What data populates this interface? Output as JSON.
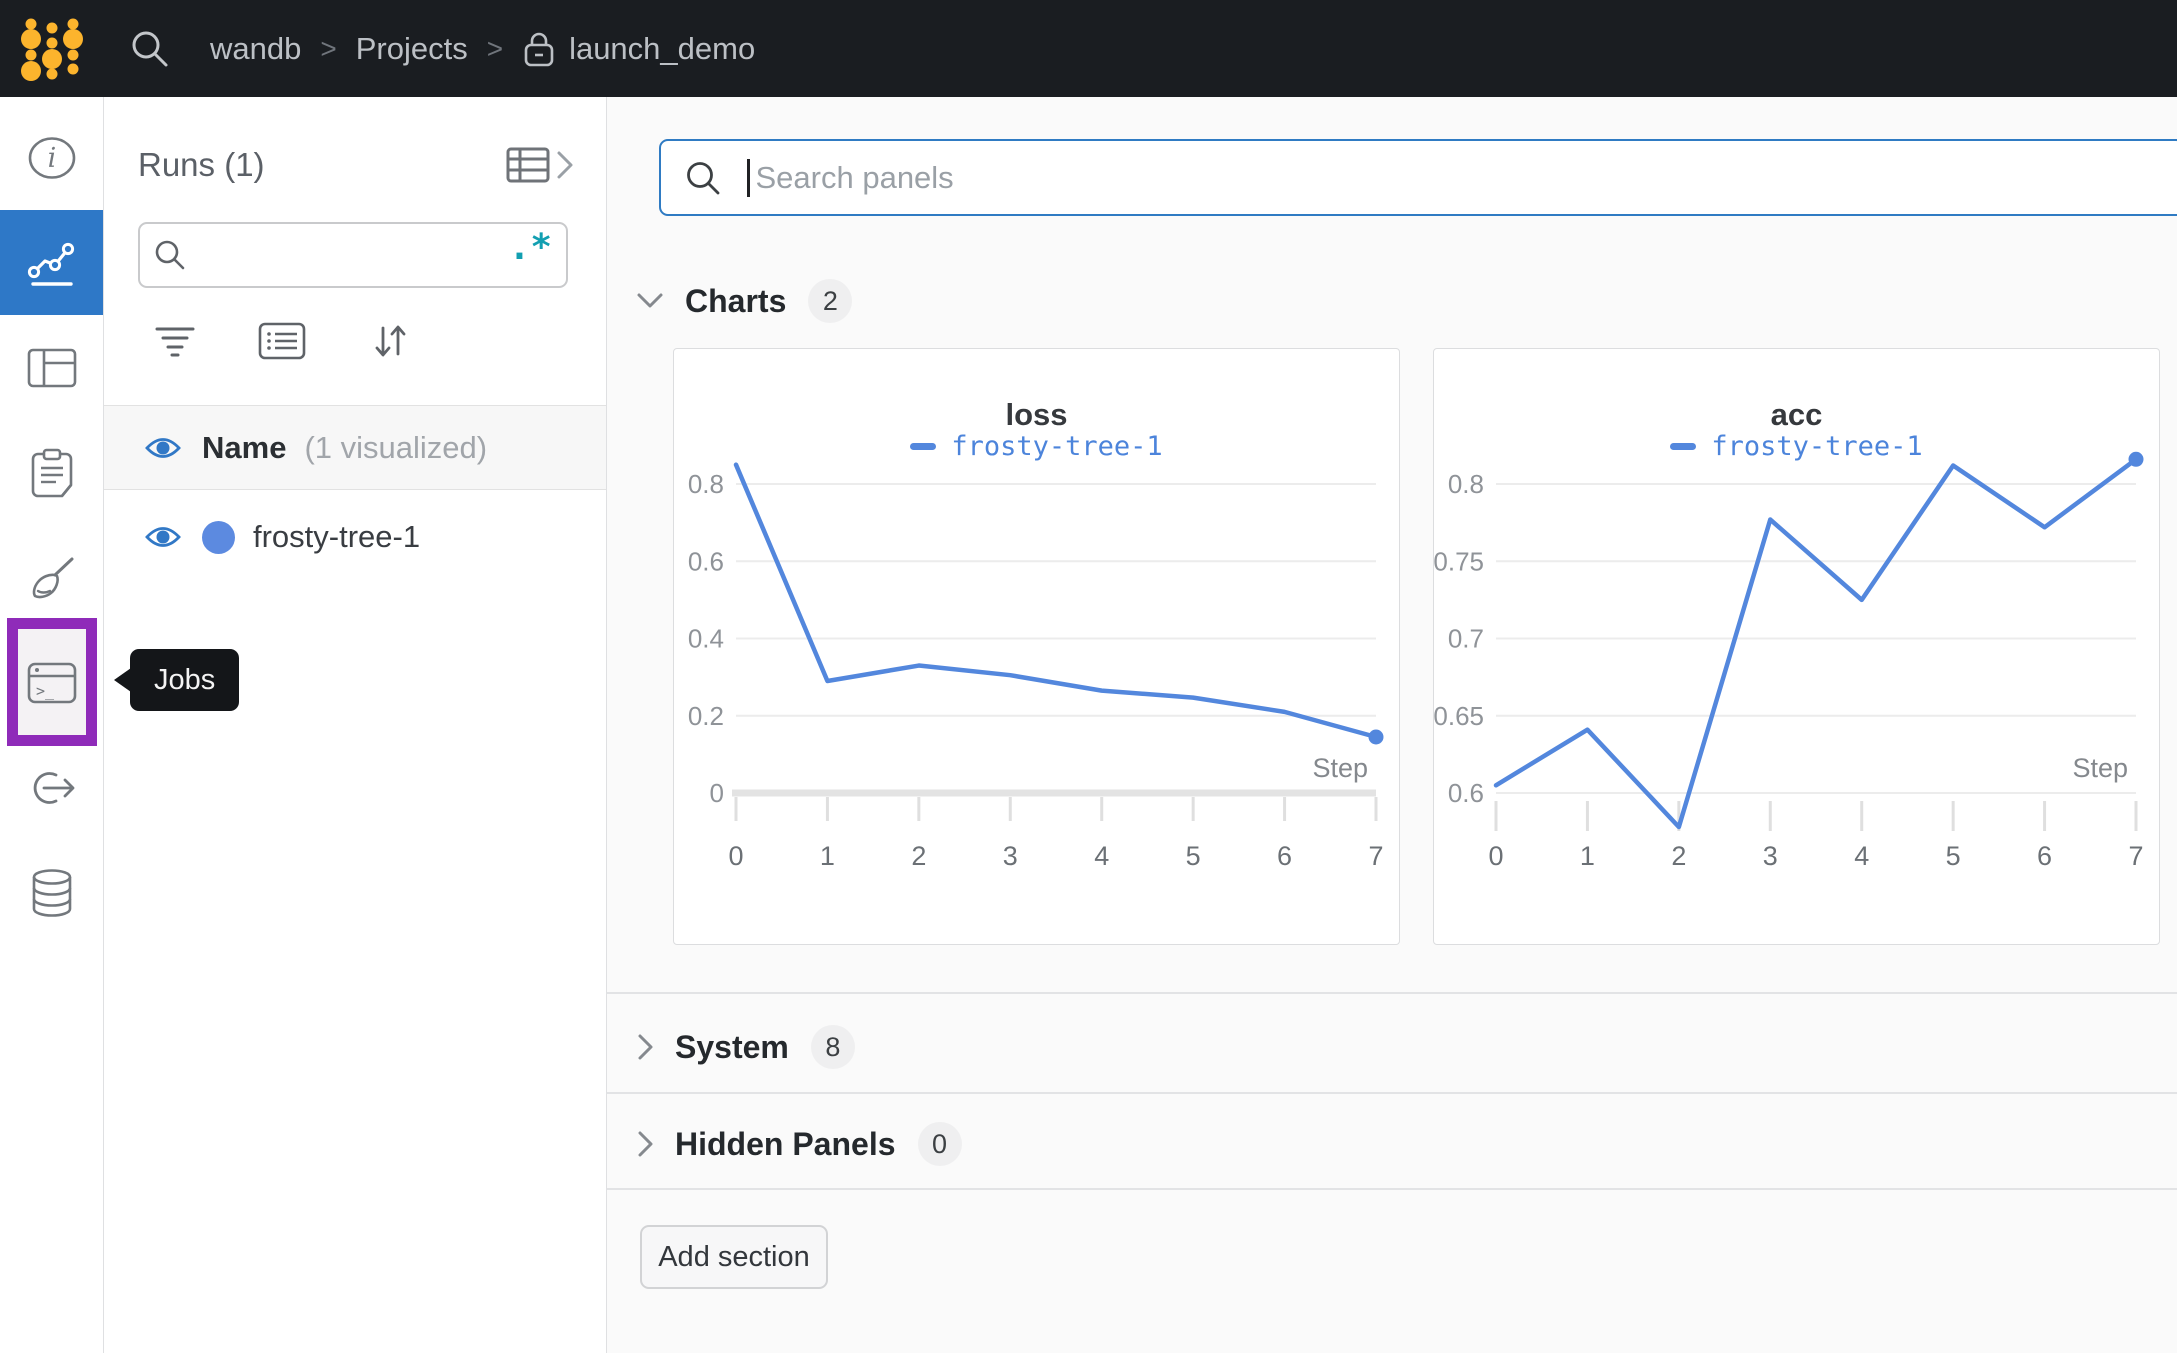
{
  "navbar": {
    "breadcrumb": [
      "wandb",
      "Projects",
      "launch_demo"
    ],
    "separator": ">"
  },
  "sidebar": {
    "tooltip": "Jobs",
    "items": [
      {
        "icon": "info-icon",
        "selected": false
      },
      {
        "icon": "line-chart-icon",
        "selected": true
      },
      {
        "icon": "layout-table-icon",
        "selected": false
      },
      {
        "icon": "clipboard-icon",
        "selected": false
      },
      {
        "icon": "broom-icon",
        "selected": false
      },
      {
        "icon": "terminal-window-icon",
        "selected": false,
        "annotation": "purple-highlight-box"
      },
      {
        "icon": "link-arrow-icon",
        "selected": false
      },
      {
        "icon": "database-icon",
        "selected": false
      }
    ]
  },
  "runs_panel": {
    "title": "Runs (1)",
    "search_value": "",
    "regex_icon": ".*",
    "visibility_header": {
      "name": "Name",
      "note": "(1 visualized)"
    },
    "runs": [
      {
        "name": "frosty-tree-1",
        "color": "#5c8ae0"
      }
    ]
  },
  "main": {
    "panel_search": {
      "placeholder": "Search panels",
      "value": ""
    },
    "sections": [
      {
        "label": "Charts",
        "count": "2",
        "state": "expanded"
      },
      {
        "label": "System",
        "count": "8",
        "state": "collapsed"
      },
      {
        "label": "Hidden Panels",
        "count": "0",
        "state": "collapsed"
      }
    ],
    "add_section_label": "Add section"
  },
  "chart_data": [
    {
      "type": "line",
      "title": "loss",
      "x": [
        0,
        1,
        2,
        3,
        4,
        5,
        6,
        7
      ],
      "series": [
        {
          "name": "frosty-tree-1",
          "color": "#5387dd",
          "values": [
            0.85,
            0.29,
            0.33,
            0.305,
            0.265,
            0.247,
            0.21,
            0.145
          ]
        }
      ],
      "xlabel": "Step",
      "yticks": [
        0,
        0.2,
        0.4,
        0.6,
        0.8
      ],
      "ylim": [
        0,
        0.9
      ],
      "x_axis_line": true,
      "grid": true,
      "legend_position": "top",
      "end_dot": true
    },
    {
      "type": "line",
      "title": "acc",
      "x": [
        0,
        1,
        2,
        3,
        4,
        5,
        6,
        7
      ],
      "series": [
        {
          "name": "frosty-tree-1",
          "color": "#5387dd",
          "values": [
            0.605,
            0.641,
            0.578,
            0.777,
            0.725,
            0.812,
            0.772,
            0.816
          ]
        }
      ],
      "xlabel": "Step",
      "yticks": [
        0.6,
        0.65,
        0.7,
        0.75,
        0.8
      ],
      "ylim": [
        0.578,
        0.82
      ],
      "x_axis_line": false,
      "grid": true,
      "legend_position": "top",
      "end_dot": true
    }
  ],
  "colors": {
    "navbar_bg": "#1a1d21",
    "logo_gold": "#fcb42d",
    "selected_nav_blue": "#2e78c7",
    "annotation_purple": "#8f2bb9",
    "run_line_blue": "#5387dd",
    "eye_blue": "#3178c6",
    "regex_teal": "#129fb1",
    "main_bg": "#fafafa",
    "search_focus_border": "#2f7bc3"
  }
}
